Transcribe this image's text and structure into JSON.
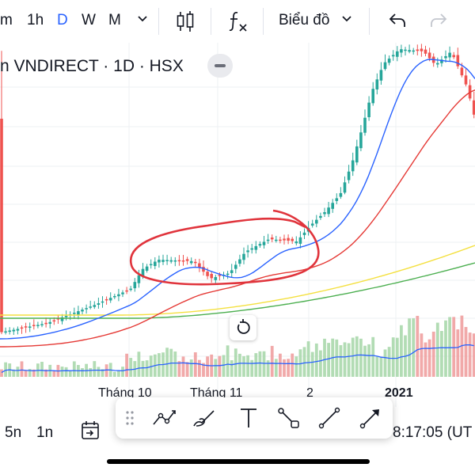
{
  "toolbar": {
    "interval_cut": "m",
    "interval_1h": "1h",
    "interval_d": "D",
    "interval_w": "W",
    "interval_m": "M",
    "chart_type_icon": "candles-icon",
    "indicators_icon": "fx-icon",
    "layout_label": "Biểu đồ",
    "undo_icon": "undo-icon",
    "redo_icon": "redo-icon"
  },
  "legend": {
    "title": "n VNDIRECT · 1D · HSX"
  },
  "time_axis": {
    "labels": [
      "Tháng 10",
      "Tháng 11",
      "2",
      "2021"
    ]
  },
  "bottom": {
    "range_5n": "5n",
    "range_1n": "1n",
    "clock": "8:17:05 (UT"
  },
  "drawing_tools": [
    "multipoint-line-icon",
    "brush-icon",
    "text-icon",
    "path-icon",
    "trend-line-icon",
    "arrow-icon"
  ],
  "colors": {
    "up": "#26a69a",
    "down": "#ef5350",
    "ma_blue": "#2962ff",
    "ma_red": "#e53935",
    "ma_yellow": "#f4e040",
    "ma_green": "#4caf50",
    "annotation": "#e0343c",
    "accent": "#2962ff"
  }
}
